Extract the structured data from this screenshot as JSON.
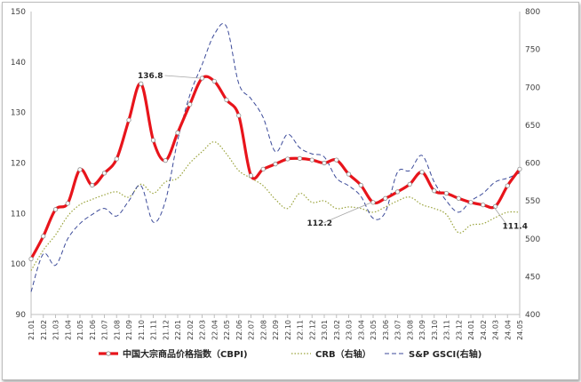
{
  "chart_data": {
    "type": "line",
    "categories": [
      "21.01",
      "21.02",
      "21.03",
      "21.04",
      "21.05",
      "21.06",
      "21.07",
      "21.08",
      "21.09",
      "21.10",
      "21.11",
      "21.12",
      "22.01",
      "22.02",
      "22.03",
      "22.04",
      "22.05",
      "22.06",
      "22.07",
      "22.08",
      "22.09",
      "22.10",
      "22.11",
      "22.12",
      "23.01",
      "23.02",
      "23.03",
      "23.04",
      "23.05",
      "23.06",
      "23.07",
      "23.08",
      "23.09",
      "23.10",
      "23.11",
      "23.12",
      "24.01",
      "24.02",
      "24.03",
      "24.04",
      "24.05"
    ],
    "y_left": {
      "min": 90,
      "max": 150,
      "step": 10
    },
    "y_right": {
      "min": 400,
      "max": 800,
      "step": 50
    },
    "series": [
      {
        "name": "中国大宗商品价格指数（CBPI)",
        "axis": "left",
        "color": "#e8141b",
        "style": "solid-thick-markers",
        "values": [
          101.0,
          105.5,
          110.8,
          112.0,
          118.7,
          115.6,
          118.0,
          120.8,
          128.5,
          135.7,
          124.5,
          120.5,
          126.0,
          131.6,
          136.8,
          136.2,
          132.5,
          129.4,
          117.5,
          118.8,
          119.8,
          120.8,
          120.9,
          120.6,
          120.0,
          120.6,
          117.8,
          115.6,
          112.2,
          113.0,
          114.3,
          115.8,
          118.2,
          114.5,
          114.0,
          113.0,
          112.2,
          111.7,
          111.4,
          115.5,
          118.8
        ]
      },
      {
        "name": "CRB（右轴）",
        "axis": "right",
        "color": "#9aa33c",
        "style": "dotted",
        "values": [
          458,
          485,
          505,
          530,
          545,
          552,
          558,
          562,
          555,
          572,
          560,
          575,
          580,
          600,
          615,
          628,
          612,
          590,
          580,
          570,
          552,
          540,
          560,
          548,
          550,
          540,
          542,
          540,
          535,
          542,
          550,
          555,
          545,
          540,
          532,
          508,
          518,
          520,
          528,
          535,
          535
        ]
      },
      {
        "name": "S&P GSCI(右轴)",
        "axis": "right",
        "color": "#3b4a99",
        "style": "dashed",
        "values": [
          430,
          480,
          465,
          500,
          520,
          532,
          540,
          530,
          550,
          570,
          522,
          550,
          630,
          690,
          730,
          770,
          780,
          705,
          685,
          660,
          615,
          638,
          620,
          612,
          608,
          580,
          570,
          556,
          527,
          535,
          588,
          590,
          610,
          575,
          550,
          535,
          550,
          560,
          575,
          580,
          587
        ]
      }
    ],
    "annotations": [
      {
        "text": "136.8",
        "category": "22.03",
        "series": 0
      },
      {
        "text": "112.2",
        "category": "23.05",
        "series": 0
      },
      {
        "text": "111.4",
        "category": "24.03",
        "series": 0
      }
    ],
    "legend_position": "bottom",
    "grid": false
  }
}
